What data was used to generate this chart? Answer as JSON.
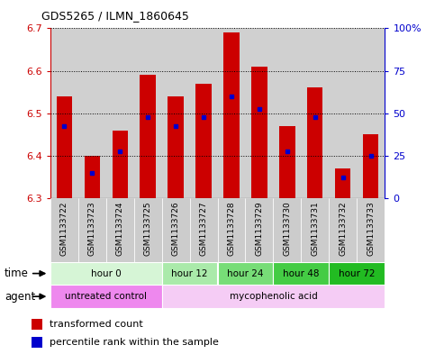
{
  "title": "GDS5265 / ILMN_1860645",
  "samples": [
    "GSM1133722",
    "GSM1133723",
    "GSM1133724",
    "GSM1133725",
    "GSM1133726",
    "GSM1133727",
    "GSM1133728",
    "GSM1133729",
    "GSM1133730",
    "GSM1133731",
    "GSM1133732",
    "GSM1133733"
  ],
  "bar_tops": [
    6.54,
    6.4,
    6.46,
    6.59,
    6.54,
    6.57,
    6.69,
    6.61,
    6.47,
    6.56,
    6.37,
    6.45
  ],
  "bar_base": 6.3,
  "blue_values": [
    6.47,
    6.36,
    6.41,
    6.49,
    6.47,
    6.49,
    6.54,
    6.51,
    6.41,
    6.49,
    6.35,
    6.4
  ],
  "ylim_left": [
    6.3,
    6.7
  ],
  "yticks_left": [
    6.3,
    6.4,
    6.5,
    6.6,
    6.7
  ],
  "ylim_right": [
    0,
    100
  ],
  "yticks_right": [
    0,
    25,
    50,
    75,
    100
  ],
  "ytick_right_labels": [
    "0",
    "25",
    "50",
    "75",
    "100%"
  ],
  "bar_color": "#CC0000",
  "blue_color": "#0000CC",
  "time_groups": [
    {
      "label": "hour 0",
      "start": 0,
      "end": 4,
      "color": "#d6f5d6"
    },
    {
      "label": "hour 12",
      "start": 4,
      "end": 6,
      "color": "#aaeaaa"
    },
    {
      "label": "hour 24",
      "start": 6,
      "end": 8,
      "color": "#77dd77"
    },
    {
      "label": "hour 48",
      "start": 8,
      "end": 10,
      "color": "#44cc44"
    },
    {
      "label": "hour 72",
      "start": 10,
      "end": 12,
      "color": "#22bb22"
    }
  ],
  "agent_groups": [
    {
      "label": "untreated control",
      "start": 0,
      "end": 4,
      "color": "#ee88ee"
    },
    {
      "label": "mycophenolic acid",
      "start": 4,
      "end": 12,
      "color": "#f5ccf5"
    }
  ],
  "left_axis_color": "#CC0000",
  "right_axis_color": "#0000CC",
  "bar_width": 0.55,
  "tick_bg_color": "#cccccc",
  "background_color": "#ffffff",
  "legend_red_label": "transformed count",
  "legend_blue_label": "percentile rank within the sample"
}
